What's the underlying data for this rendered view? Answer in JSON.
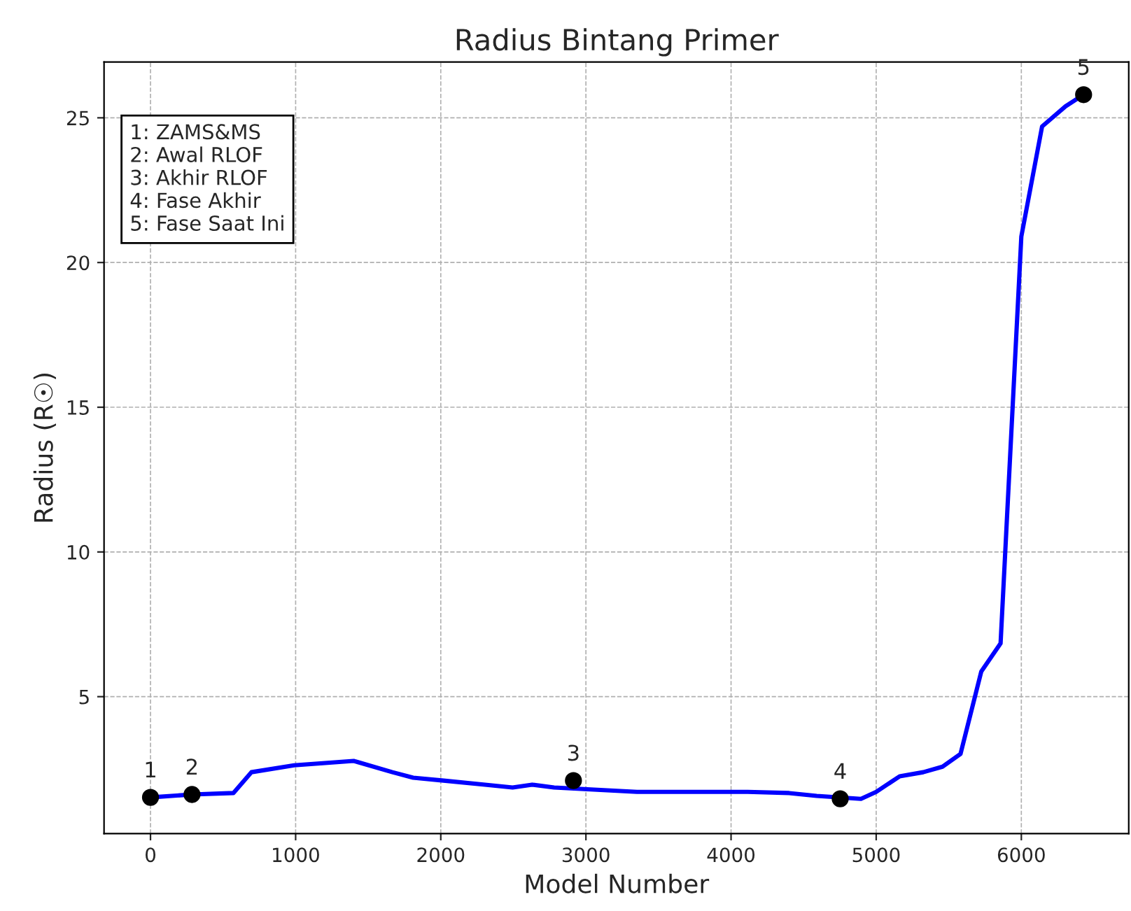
{
  "chart_data": {
    "type": "line",
    "title": "Radius Bintang Primer",
    "xlabel": "Model Number",
    "ylabel": "Radius (R☉)",
    "xlim": [
      -320,
      6740
    ],
    "ylim": [
      0.27,
      26.93
    ],
    "xticks": [
      0,
      1000,
      2000,
      3000,
      4000,
      5000,
      6000
    ],
    "yticks": [
      5,
      10,
      15,
      20,
      25
    ],
    "grid": true,
    "series": [
      {
        "color": "#0000ff",
        "line_style": "solid",
        "marker": "none",
        "x": [
          0,
          286,
          571,
          695,
          990,
          1400,
          1667,
          1810,
          2019,
          2305,
          2495,
          2629,
          2781,
          3352,
          4114,
          4400,
          4590,
          4895,
          5000,
          5162,
          5324,
          5457,
          5581,
          5724,
          5857,
          6000,
          6143,
          6305,
          6429
        ],
        "values": [
          1.52,
          1.62,
          1.67,
          2.39,
          2.63,
          2.78,
          2.39,
          2.2,
          2.1,
          1.96,
          1.86,
          1.96,
          1.86,
          1.71,
          1.71,
          1.67,
          1.57,
          1.47,
          1.71,
          2.25,
          2.39,
          2.58,
          3.02,
          5.87,
          6.84,
          20.9,
          24.7,
          25.4,
          25.8
        ]
      },
      {
        "type": "scatter",
        "color": "#000000",
        "marker": "circle",
        "x": [
          0,
          286,
          2914,
          4752,
          6429
        ],
        "values": [
          1.52,
          1.62,
          2.1,
          1.47,
          25.8
        ]
      }
    ],
    "annotations": [
      "1: ZAMS&MS",
      "2: Awal RLOF",
      "3: Akhir RLOF",
      "4: Fase Akhir",
      "5: Fase Saat Ini",
      {
        "text": "1",
        "x": 0,
        "y": 1.52
      },
      {
        "text": "2",
        "x": 286,
        "y": 1.62
      },
      {
        "text": "3",
        "x": 2914,
        "y": 2.1
      },
      {
        "text": "4",
        "x": 4752,
        "y": 1.47
      },
      {
        "text": "5",
        "x": 6429,
        "y": 25.8
      }
    ]
  }
}
